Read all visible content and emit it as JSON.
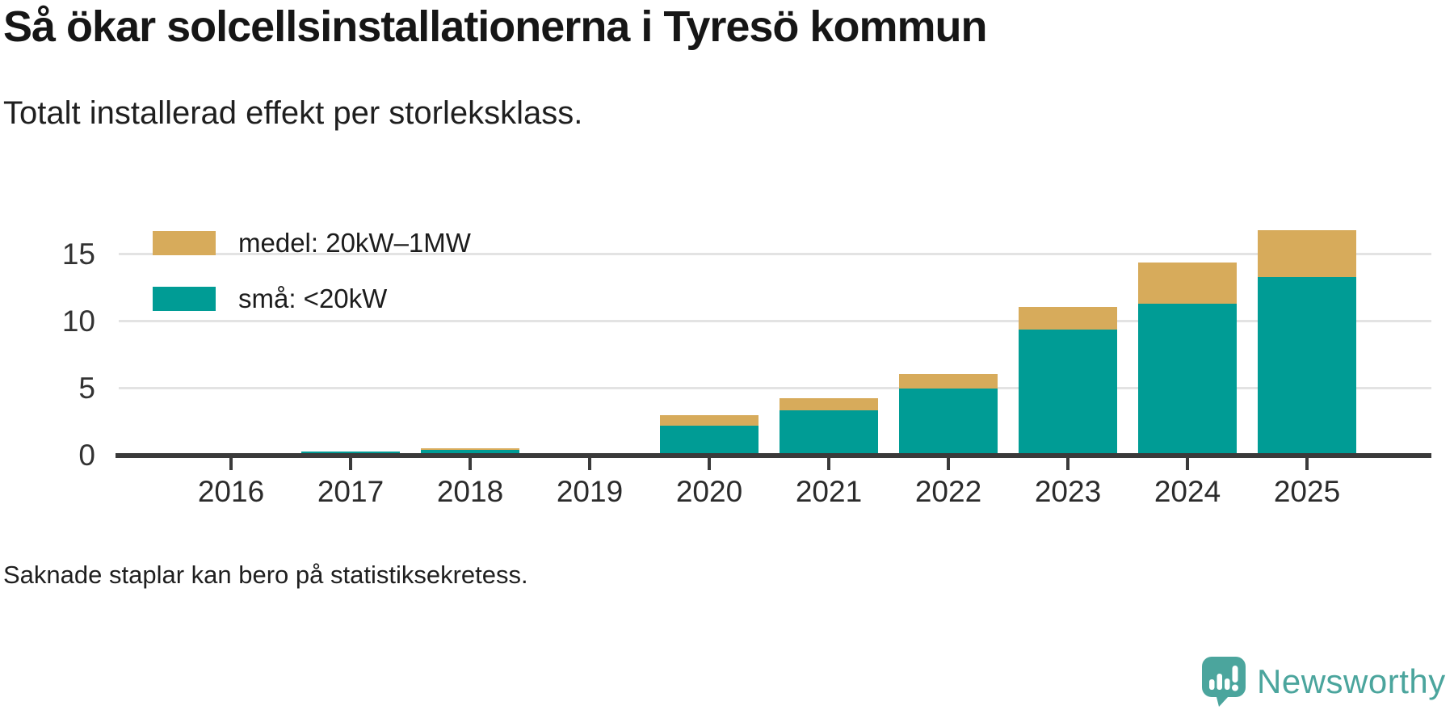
{
  "header": {
    "title": "Så ökar solcellsinstallationerna i Tyresö kommun",
    "subtitle": "Totalt installerad effekt per storleksklass."
  },
  "legend": [
    {
      "label": "medel: 20kW–1MW",
      "color": "#d7ab5b"
    },
    {
      "label": "små: <20kW",
      "color": "#009c95"
    }
  ],
  "footnote": "Saknade staplar kan bero på statistiksekretess.",
  "branding": {
    "name": "Newsworthy",
    "color": "#4ba59d"
  },
  "colors": {
    "small_systems": "#009c95",
    "medium_systems": "#d7ab5b",
    "axis": "#3a3a3a",
    "gridline": "#e3e3e3"
  },
  "chart_data": {
    "type": "bar",
    "stacked": true,
    "title": "Så ökar solcellsinstallationerna i Tyresö kommun",
    "subtitle": "Totalt installerad effekt per storleksklass.",
    "xlabel": "",
    "ylabel": "",
    "categories": [
      "2016",
      "2017",
      "2018",
      "2019",
      "2020",
      "2021",
      "2022",
      "2023",
      "2024",
      "2025"
    ],
    "series": [
      {
        "name": "små: <20kW",
        "color": "#009c95",
        "values": [
          0,
          0.3,
          0.45,
          0,
          2.2,
          3.4,
          5.0,
          9.4,
          11.3,
          13.3
        ]
      },
      {
        "name": "medel: 20kW–1MW",
        "color": "#d7ab5b",
        "values": [
          0.1,
          0,
          0.1,
          0,
          0.8,
          0.9,
          1.1,
          1.7,
          3.1,
          3.5
        ]
      }
    ],
    "totals": [
      0.1,
      0.3,
      0.55,
      0,
      3.0,
      4.3,
      6.1,
      11.1,
      14.4,
      16.8
    ],
    "missing_categories": [
      "2019"
    ],
    "yticks": [
      0,
      5,
      10,
      15
    ],
    "ylim": [
      0,
      18.9
    ],
    "grid": "horizontal",
    "legend_position": "top-left",
    "annotation": "Saknade staplar kan bero på statistiksekretess."
  }
}
